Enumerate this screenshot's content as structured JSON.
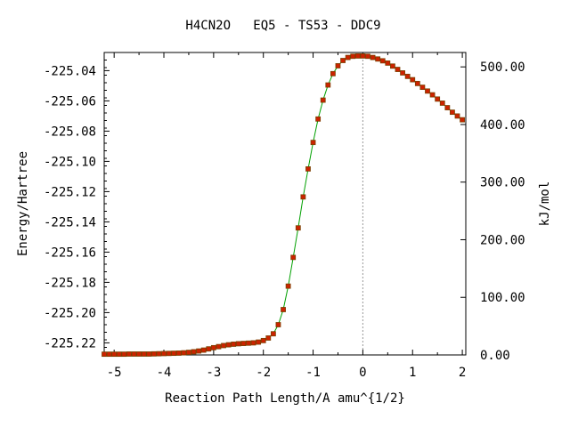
{
  "chart_data": {
    "type": "line",
    "title": "H4CN2O   EQ5 - TS53 - DDC9",
    "xlabel": "Reaction Path Length/A amu^{1/2}",
    "ylabel": "Energy/Hartree",
    "y2label": "kJ/mol",
    "xlim": [
      -5.2,
      2.07
    ],
    "ylim": [
      -225.228,
      -225.028
    ],
    "y2lim": [
      0,
      525
    ],
    "x_ticks": [
      -5,
      -4,
      -3,
      -2,
      -1,
      0,
      1,
      2
    ],
    "x_tick_labels": [
      "-5",
      "-4",
      "-3",
      "-2",
      "-1",
      "0",
      "1",
      "2"
    ],
    "y_ticks": [
      -225.04,
      -225.06,
      -225.08,
      -225.1,
      -225.12,
      -225.14,
      -225.16,
      -225.18,
      -225.2,
      -225.22
    ],
    "y_tick_labels": [
      "-225.04",
      "-225.06",
      "-225.08",
      "-225.10",
      "-225.12",
      "-225.14",
      "-225.16",
      "-225.18",
      "-225.20",
      "-225.22"
    ],
    "y2_ticks": [
      0,
      100,
      200,
      300,
      400,
      500
    ],
    "y2_tick_labels": [
      "0.00",
      "100.00",
      "200.00",
      "300.00",
      "400.00",
      "500.00"
    ],
    "ts_marker_x": 0,
    "line_color": "#00a000",
    "point_color": "#cc2200",
    "point_edge_color": "#7a4000",
    "series": [
      {
        "x": [
          -5.2,
          -5.1,
          -5.0,
          -4.9,
          -4.8,
          -4.7,
          -4.6,
          -4.5,
          -4.4,
          -4.3,
          -4.2,
          -4.1,
          -4.0,
          -3.9,
          -3.8,
          -3.7,
          -3.6,
          -3.5,
          -3.4,
          -3.3,
          -3.2,
          -3.1,
          -3.0,
          -2.9,
          -2.8,
          -2.7,
          -2.6,
          -2.5,
          -2.4,
          -2.3,
          -2.2,
          -2.1,
          -2.0,
          -1.9,
          -1.8,
          -1.7,
          -1.6,
          -1.5,
          -1.4,
          -1.3,
          -1.2,
          -1.1,
          -1.0,
          -0.9,
          -0.8,
          -0.7,
          -0.6,
          -0.5,
          -0.4,
          -0.3,
          -0.2,
          -0.1,
          0.0,
          0.1,
          0.2,
          0.3,
          0.4,
          0.5,
          0.6,
          0.7,
          0.8,
          0.9,
          1.0,
          1.1,
          1.2,
          1.3,
          1.4,
          1.5,
          1.6,
          1.7,
          1.8,
          1.9,
          2.0
        ],
        "y": [
          -225.2275,
          -225.2275,
          -225.2275,
          -225.2275,
          -225.2275,
          -225.2274,
          -225.2274,
          -225.2274,
          -225.2274,
          -225.2274,
          -225.2273,
          -225.2272,
          -225.2271,
          -225.227,
          -225.2269,
          -225.2268,
          -225.2266,
          -225.2263,
          -225.2259,
          -225.2254,
          -225.2248,
          -225.224,
          -225.2232,
          -225.2225,
          -225.2218,
          -225.2213,
          -225.2209,
          -225.2206,
          -225.2204,
          -225.2202,
          -225.22,
          -225.2195,
          -225.2185,
          -225.2168,
          -225.214,
          -225.208,
          -225.198,
          -225.1825,
          -225.1635,
          -225.144,
          -225.1235,
          -225.105,
          -225.0875,
          -225.072,
          -225.0595,
          -225.0495,
          -225.042,
          -225.0368,
          -225.0333,
          -225.0313,
          -225.0305,
          -225.0303,
          -225.0303,
          -225.0305,
          -225.0313,
          -225.0323,
          -225.0335,
          -225.035,
          -225.037,
          -225.0392,
          -225.0415,
          -225.0438,
          -225.046,
          -225.0485,
          -225.051,
          -225.0535,
          -225.056,
          -225.0588,
          -225.0615,
          -225.0645,
          -225.0675,
          -225.07,
          -225.0725
        ]
      }
    ]
  }
}
